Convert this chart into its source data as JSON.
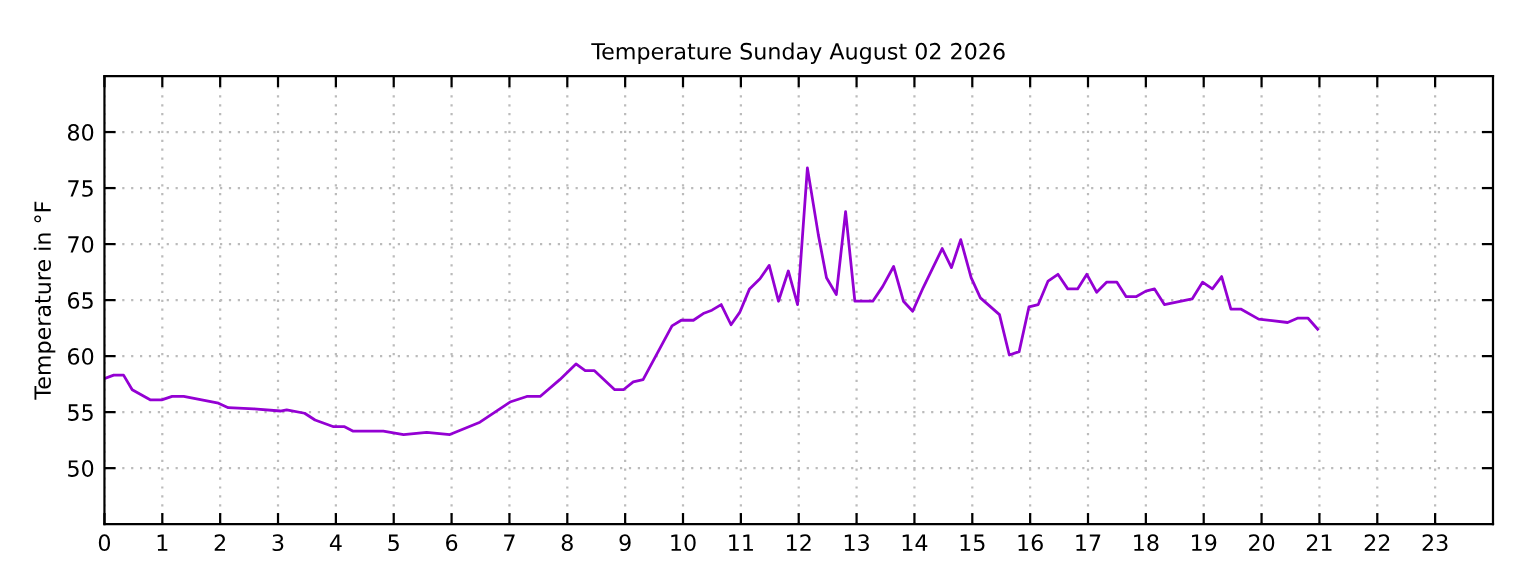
{
  "chart_data": {
    "type": "line",
    "title": "Temperature Sunday August 02 2026",
    "ylabel": "Temperature in °F",
    "x": [
      0,
      0.16,
      0.33,
      0.48,
      0.79,
      0.99,
      1.17,
      1.37,
      1.77,
      1.97,
      2.14,
      2.58,
      3.04,
      3.15,
      3.46,
      3.64,
      3.96,
      4.15,
      4.3,
      4.82,
      5.17,
      5.57,
      5.97,
      6.49,
      7.01,
      7.3,
      7.53,
      7.87,
      8.15,
      8.31,
      8.47,
      8.82,
      8.97,
      9.14,
      9.31,
      9.81,
      9.97,
      10.18,
      10.35,
      10.5,
      10.66,
      10.83,
      10.98,
      11.15,
      11.33,
      11.49,
      11.65,
      11.82,
      11.98,
      12.15,
      12.34,
      12.48,
      12.65,
      12.81,
      12.97,
      13.28,
      13.45,
      13.64,
      13.81,
      13.97,
      14.15,
      14.48,
      14.64,
      14.8,
      14.98,
      15.14,
      15.47,
      15.64,
      15.81,
      15.98,
      16.14,
      16.31,
      16.48,
      16.65,
      16.82,
      16.98,
      17.15,
      17.32,
      17.5,
      17.66,
      17.83,
      18.0,
      18.15,
      18.32,
      18.8,
      18.98,
      19.15,
      19.31,
      19.47,
      19.64,
      19.95,
      20.45,
      20.63,
      20.8,
      20.97
    ],
    "series": [
      {
        "color": "#9400d3",
        "values": [
          58.0,
          58.3,
          58.3,
          57.0,
          56.1,
          56.1,
          56.4,
          56.4,
          56.0,
          55.8,
          55.4,
          55.3,
          55.1,
          55.2,
          54.9,
          54.3,
          53.7,
          53.7,
          53.3,
          53.3,
          53.0,
          53.2,
          53.0,
          54.1,
          55.9,
          56.4,
          56.4,
          57.9,
          59.3,
          58.7,
          58.7,
          57.0,
          57.0,
          57.7,
          57.9,
          62.7,
          63.2,
          63.2,
          63.8,
          64.1,
          64.6,
          62.8,
          63.9,
          66.0,
          66.9,
          68.1,
          64.9,
          67.6,
          64.6,
          76.8,
          70.8,
          67.0,
          65.5,
          72.9,
          64.9,
          64.9,
          66.2,
          68.0,
          64.9,
          64.0,
          66.1,
          69.6,
          67.9,
          70.4,
          67.0,
          65.2,
          63.7,
          60.1,
          60.4,
          64.4,
          64.6,
          66.7,
          67.3,
          66.0,
          66.0,
          67.3,
          65.7,
          66.6,
          66.6,
          65.3,
          65.3,
          65.8,
          66.0,
          64.6,
          65.1,
          66.6,
          66.0,
          67.1,
          64.2,
          64.2,
          63.3,
          63.0,
          63.4,
          63.4,
          62.4
        ]
      }
    ],
    "xlim": [
      0,
      24
    ],
    "xticks": [
      0,
      1,
      2,
      3,
      4,
      5,
      6,
      7,
      8,
      9,
      10,
      11,
      12,
      13,
      14,
      15,
      16,
      17,
      18,
      19,
      20,
      21,
      22,
      23
    ],
    "ylim": [
      45,
      85
    ],
    "yticks": [
      50,
      55,
      60,
      65,
      70,
      75,
      80
    ],
    "grid": true,
    "marker": "none",
    "line_style": "solid"
  }
}
